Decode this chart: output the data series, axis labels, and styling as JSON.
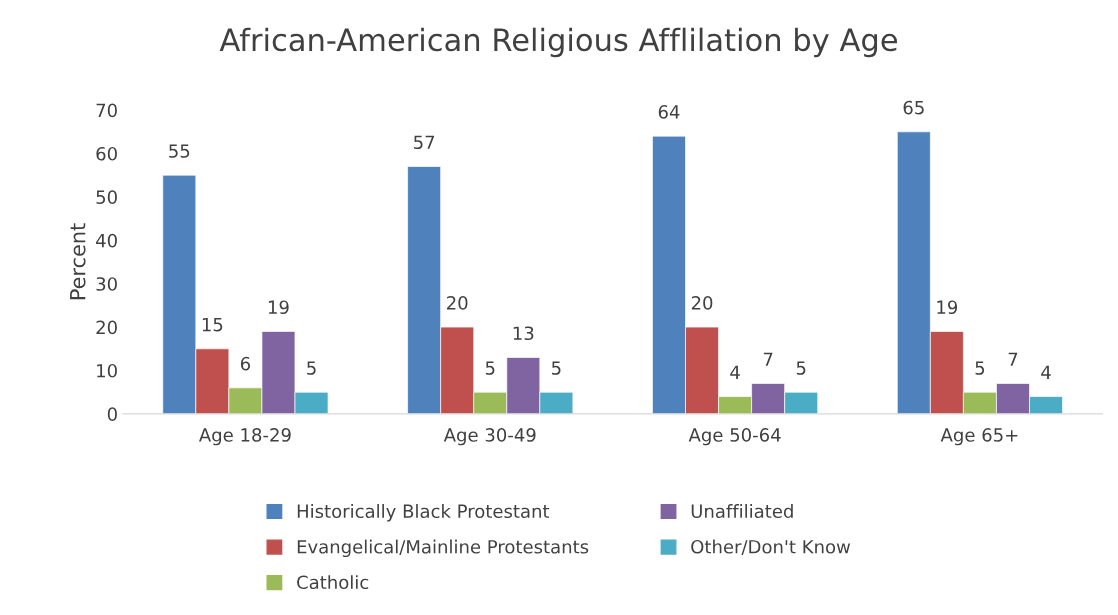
{
  "chart_data": {
    "type": "bar",
    "title": "African-American Religious Afflilation by Age",
    "ylabel": "Percent",
    "categories": [
      "Age 18-29",
      "Age 30-49",
      "Age 50-64",
      "Age 65+"
    ],
    "series": [
      {
        "name": "Historically Black Protestant",
        "color": "#4f81bd",
        "values": [
          55,
          57,
          64,
          65
        ]
      },
      {
        "name": "Evangelical/Mainline Protestants",
        "color": "#c0504d",
        "values": [
          15,
          20,
          20,
          19
        ]
      },
      {
        "name": "Catholic",
        "color": "#9bbb59",
        "values": [
          6,
          5,
          4,
          5
        ]
      },
      {
        "name": "Unaffiliated",
        "color": "#8064a2",
        "values": [
          19,
          13,
          7,
          7
        ]
      },
      {
        "name": "Other/Don't Know",
        "color": "#4bacc6",
        "values": [
          5,
          5,
          5,
          4
        ]
      }
    ],
    "ylim": [
      0,
      70
    ],
    "yticks": [
      0,
      10,
      20,
      30,
      40,
      50,
      60,
      70
    ],
    "data_labels": true,
    "legend": "bottom",
    "grid": false
  }
}
